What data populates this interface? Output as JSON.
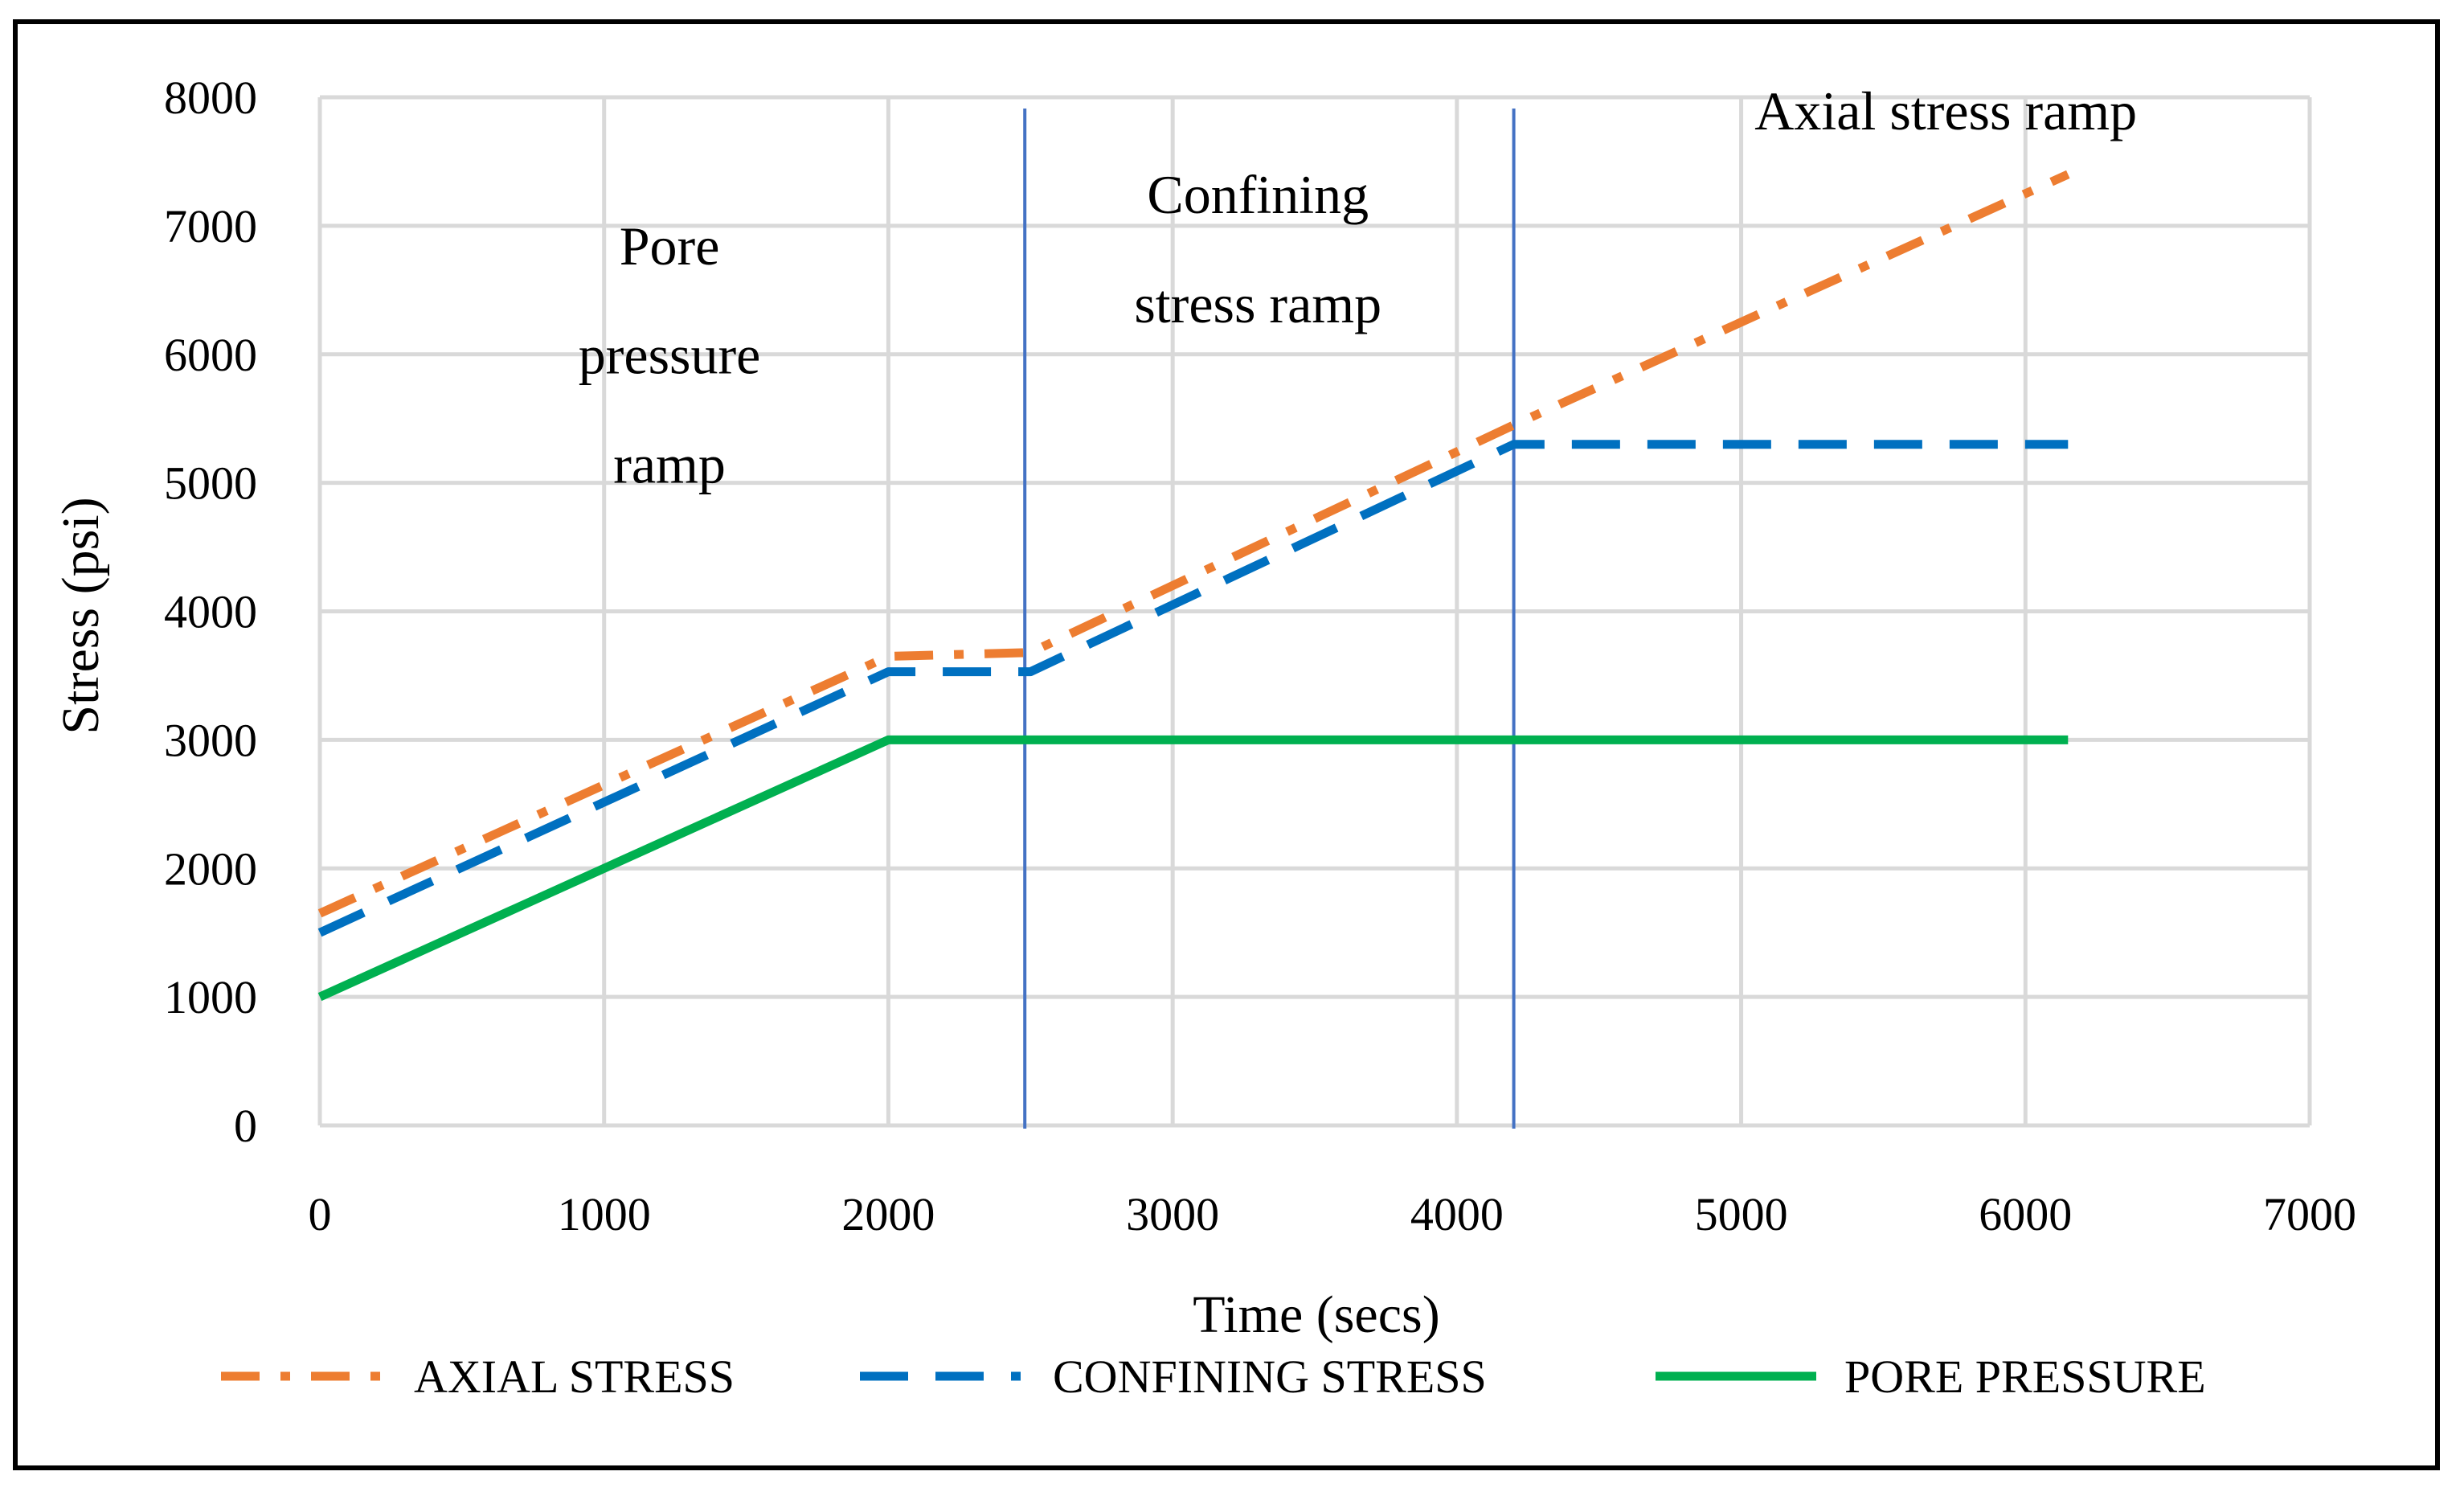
{
  "chart_data": {
    "type": "line",
    "title": "",
    "xlabel": "Time (secs)",
    "ylabel": "Stress (psi)",
    "xlim": [
      0,
      7000
    ],
    "ylim": [
      0,
      8000
    ],
    "xticks": [
      0,
      1000,
      2000,
      3000,
      4000,
      5000,
      6000,
      7000
    ],
    "yticks": [
      0,
      1000,
      2000,
      3000,
      4000,
      5000,
      6000,
      7000,
      8000
    ],
    "grid": true,
    "legend_position": "bottom",
    "series": [
      {
        "name": "AXIAL STRESS",
        "color": "#ED7D31",
        "style": "dash-dot",
        "points": [
          [
            0,
            1650
          ],
          [
            2000,
            3650
          ],
          [
            2500,
            3680
          ],
          [
            4200,
            5450
          ],
          [
            6150,
            7400
          ]
        ]
      },
      {
        "name": "CONFINING STRESS",
        "color": "#0070C0",
        "style": "dash",
        "points": [
          [
            0,
            1500
          ],
          [
            2000,
            3530
          ],
          [
            2500,
            3530
          ],
          [
            4200,
            5300
          ],
          [
            6150,
            5300
          ]
        ]
      },
      {
        "name": "PORE PRESSURE",
        "color": "#00B050",
        "style": "solid",
        "points": [
          [
            0,
            1000
          ],
          [
            2000,
            3000
          ],
          [
            6150,
            3000
          ]
        ]
      }
    ],
    "phase_markers": [
      {
        "x": 2480,
        "color": "#4472C4"
      },
      {
        "x": 4200,
        "color": "#4472C4"
      }
    ],
    "annotations": [
      {
        "lines": [
          "Pore",
          "pressure",
          "ramp"
        ],
        "x": 1230,
        "y": [
          6700,
          5850,
          5000
        ]
      },
      {
        "lines": [
          "Confining",
          "stress ramp"
        ],
        "x": 3300,
        "y": [
          7100,
          6250
        ]
      },
      {
        "lines": [
          "Axial stress ramp"
        ],
        "x": 5720,
        "y": [
          7750
        ]
      }
    ]
  }
}
